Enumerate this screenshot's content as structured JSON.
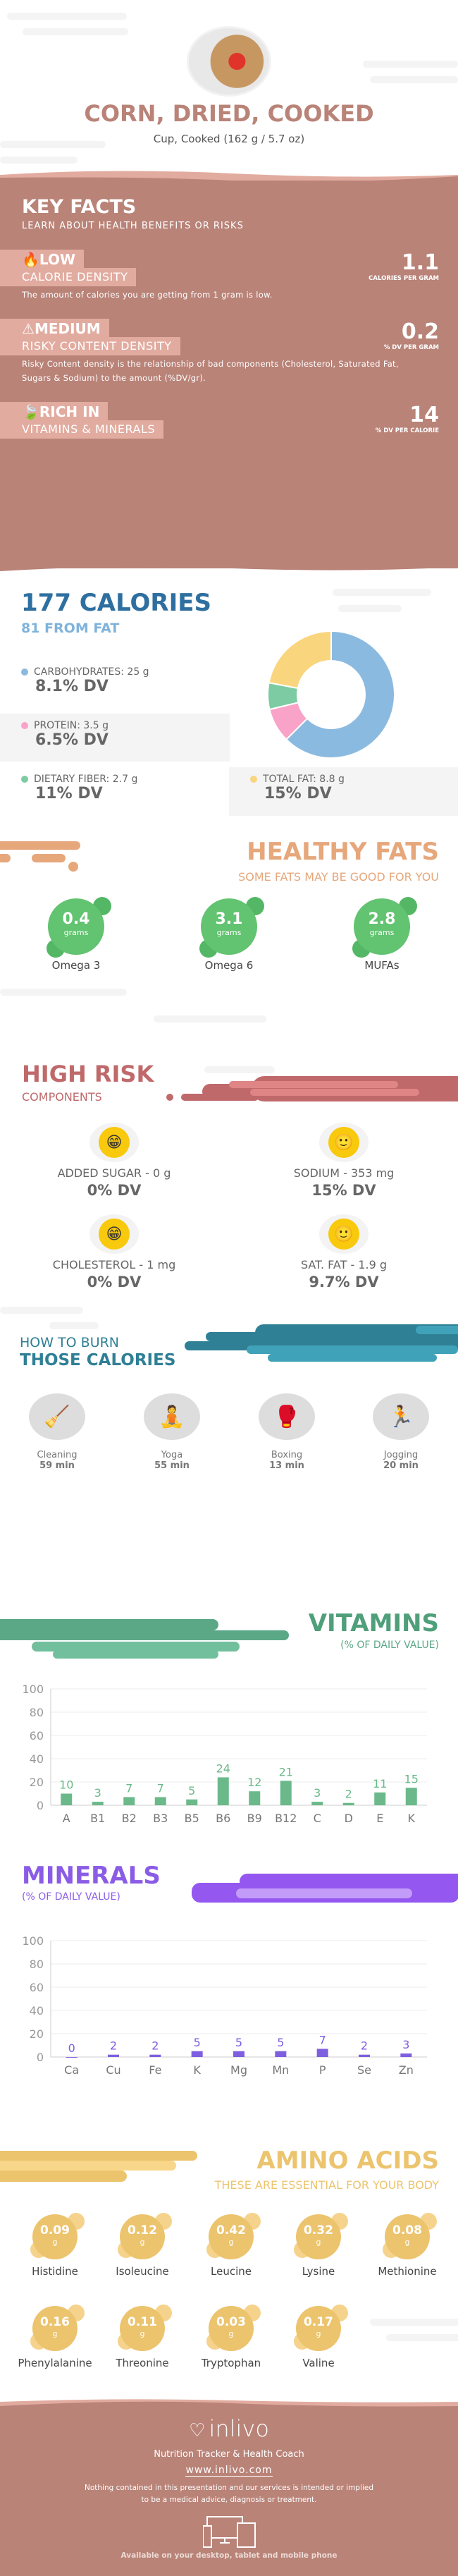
{
  "header": {
    "title": "CORN, DRIED, COOKED",
    "serving": "Cup, Cooked (162 g / 5.7 oz)",
    "image": "food-prep-photo"
  },
  "key_facts": {
    "title": "KEY FACTS",
    "subtitle": "LEARN ABOUT HEALTH BENEFITS OR RISKS",
    "items": [
      {
        "icon": "flame-icon",
        "level": "LOW",
        "label": "CALORIE DENSITY",
        "value": "1.1",
        "unit": "CALORIES PER GRAM",
        "desc": "The amount of calories you are getting from 1 gram is low."
      },
      {
        "icon": "warning-icon",
        "level": "MEDIUM",
        "label": "RISKY CONTENT DENSITY",
        "value": "0.2",
        "unit": "% DV PER GRAM",
        "desc": "Risky Content density is the relationship of bad components (Cholesterol, Saturated Fat, Sugars & Sodium) to the amount (%DV/gr)."
      },
      {
        "icon": "leaf-icon",
        "level": "RICH  IN",
        "label": "VITAMINS & MINERALS",
        "value": "14",
        "unit": "% DV PER CALORIE",
        "desc": ""
      }
    ]
  },
  "calories": {
    "title": "177 CALORIES",
    "from_fat": "81 FROM FAT",
    "macros": [
      {
        "label": "CARBOHYDRATES: 25 g",
        "dv": "8.1% DV",
        "color": "#8bbae0"
      },
      {
        "label": "PROTEIN: 3.5 g",
        "dv": "6.5% DV",
        "color": "#f9a3c8"
      },
      {
        "label": "DIETARY FIBER: 2.7 g",
        "dv": "11% DV",
        "color": "#7ccba2"
      },
      {
        "label": "TOTAL FAT: 8.8 g",
        "dv": "15% DV",
        "color": "#f9d57e"
      }
    ]
  },
  "chart_data": [
    {
      "type": "pie",
      "variant": "donut",
      "categories": [
        "Carbohydrates",
        "Protein",
        "Dietary Fiber",
        "Total Fat"
      ],
      "values": [
        25,
        3.5,
        2.7,
        8.8
      ],
      "colors": [
        "#8bbae0",
        "#f9a3c8",
        "#7ccba2",
        "#f9d57e"
      ]
    },
    {
      "type": "bar",
      "title": "VITAMINS",
      "subtitle": "(% OF DAILY VALUE)",
      "categories": [
        "A",
        "B1",
        "B2",
        "B3",
        "B5",
        "B6",
        "B9",
        "B12",
        "C",
        "D",
        "E",
        "K"
      ],
      "values": [
        10,
        3,
        7,
        7,
        5,
        24,
        12,
        21,
        3,
        2,
        11,
        15
      ],
      "ylim": [
        0,
        100
      ],
      "yticks": [
        0,
        20,
        40,
        60,
        80,
        100
      ],
      "grid": true,
      "color": "#6bb98a"
    },
    {
      "type": "bar",
      "title": "MINERALS",
      "subtitle": "(% OF DAILY VALUE)",
      "categories": [
        "Ca",
        "Cu",
        "Fe",
        "K",
        "Mg",
        "Mn",
        "P",
        "Se",
        "Zn"
      ],
      "values": [
        0,
        2,
        2,
        5,
        5,
        5,
        7,
        2,
        3
      ],
      "ylim": [
        0,
        100
      ],
      "yticks": [
        0,
        20,
        40,
        60,
        80,
        100
      ],
      "grid": true,
      "color": "#7e5fe0"
    }
  ],
  "healthy_fats": {
    "title": "HEALTHY FATS",
    "subtitle": "SOME FATS MAY BE GOOD FOR YOU",
    "unit": "grams",
    "items": [
      {
        "value": "0.4",
        "label": "Omega 3"
      },
      {
        "value": "3.1",
        "label": "Omega 6"
      },
      {
        "value": "2.8",
        "label": "MUFAs"
      }
    ]
  },
  "high_risk": {
    "title": "HIGH RISK",
    "subtitle": "COMPONENTS",
    "items": [
      {
        "label": "ADDED SUGAR - 0 g",
        "dv": "0% DV",
        "icon": "grin-face-icon"
      },
      {
        "label": "SODIUM - 353 mg",
        "dv": "15% DV",
        "icon": "smile-face-icon"
      },
      {
        "label": "CHOLESTEROL - 1 mg",
        "dv": "0% DV",
        "icon": "grin-face-icon"
      },
      {
        "label": "SAT. FAT - 1.9 g",
        "dv": "9.7% DV",
        "icon": "smile-face-icon"
      }
    ]
  },
  "burn": {
    "title1": "HOW TO BURN",
    "title2": "THOSE CALORIES",
    "items": [
      {
        "label": "Cleaning",
        "time": "59 min",
        "icon": "cleaning-icon"
      },
      {
        "label": "Yoga",
        "time": "55 min",
        "icon": "yoga-icon"
      },
      {
        "label": "Boxing",
        "time": "13 min",
        "icon": "boxing-icon"
      },
      {
        "label": "Jogging",
        "time": "20 min",
        "icon": "jogging-icon"
      }
    ]
  },
  "vitamins": {
    "title": "VITAMINS",
    "subtitle": "(% OF DAILY VALUE)"
  },
  "minerals": {
    "title": "MINERALS",
    "subtitle": "(% OF DAILY VALUE)"
  },
  "amino": {
    "title": "AMINO ACIDS",
    "subtitle": "THESE ARE ESSENTIAL FOR YOUR BODY",
    "unit": "g",
    "items": [
      {
        "value": "0.09",
        "label": "Histidine"
      },
      {
        "value": "0.12",
        "label": "Isoleucine"
      },
      {
        "value": "0.42",
        "label": "Leucine"
      },
      {
        "value": "0.32",
        "label": "Lysine"
      },
      {
        "value": "0.08",
        "label": "Methionine"
      },
      {
        "value": "0.16",
        "label": "Phenylalanine"
      },
      {
        "value": "0.11",
        "label": "Threonine"
      },
      {
        "value": "0.03",
        "label": "Tryptophan"
      },
      {
        "value": "0.17",
        "label": "Valine"
      }
    ]
  },
  "footer": {
    "brand": "inlivo",
    "tagline": "Nutrition Tracker & Health Coach",
    "url": "www.inlivo.com",
    "disclaimer1": "Nothing contained in this presentation and our services is intended or implied",
    "disclaimer2": "to be a medical advice, diagnosis or treatment.",
    "available": "Available on your desktop, tablet and mobile phone"
  },
  "colors": {
    "brown": "#b98378",
    "pink": "#e2ab9f",
    "calories": "#2e6fa0",
    "fats": "#e6a77b",
    "risk": "#c0696b",
    "burn": "#2f7f95",
    "vitamins": "#5ba887",
    "minerals": "#8a5ce6",
    "amino": "#ecc46e"
  }
}
